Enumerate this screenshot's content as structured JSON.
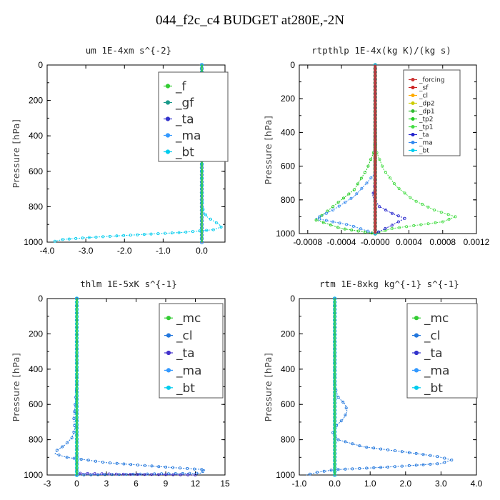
{
  "figure_title": "044_f2c_c4  BUDGET at280E,-2N",
  "chart_data": [
    {
      "type": "line",
      "title": "um   1E-4xm s^{-2}",
      "ylabel": "Pressure [hPa]",
      "xlim": [
        -4.0,
        0.6
      ],
      "ylim": [
        1000,
        0
      ],
      "xticks": [
        -4.0,
        -3.0,
        -2.0,
        -1.0,
        0.0
      ],
      "xtick_labels": [
        "-4.0",
        "-3.0",
        "-2.0",
        "-1.0",
        "0.0"
      ],
      "yticks": [
        0,
        200,
        400,
        600,
        800,
        1000
      ],
      "ytick_labels": [
        "0",
        "200",
        "400",
        "600",
        "800",
        "1000"
      ],
      "legend_placement": "top-right",
      "series": [
        {
          "name": "_f",
          "color": "#33cc33",
          "x": [
            0,
            0
          ],
          "y": [
            0,
            1000
          ]
        },
        {
          "name": "_gf",
          "color": "#1a9a8a",
          "x": [
            0,
            0
          ],
          "y": [
            0,
            1000
          ]
        },
        {
          "name": "_ta",
          "color": "#3333cc",
          "x": [
            0,
            0
          ],
          "y": [
            0,
            1000
          ]
        },
        {
          "name": "_ma",
          "color": "#3399ff",
          "x": [
            0,
            0
          ],
          "y": [
            0,
            1000
          ]
        },
        {
          "name": "_bt",
          "color": "#00ccee",
          "x": [
            0,
            0,
            0,
            0,
            0,
            0,
            0.02,
            0.05,
            0.15,
            0.3,
            0.45,
            0.5,
            0.3,
            -0.5,
            -1.4,
            -2.2,
            -3.0,
            -3.6,
            -3.8
          ],
          "y": [
            0,
            200,
            400,
            600,
            700,
            750,
            800,
            830,
            860,
            880,
            900,
            915,
            930,
            945,
            955,
            965,
            975,
            985,
            995
          ]
        }
      ]
    },
    {
      "type": "line",
      "title": "rtpthlp   1E-4x(kg K)/(kg s)",
      "ylabel": "Pressure [hPa]",
      "xlim": [
        -0.0009,
        0.0012
      ],
      "ylim": [
        1000,
        0
      ],
      "xticks": [
        -0.0008,
        -0.0004,
        0.0,
        0.0004,
        0.0008,
        0.0012
      ],
      "xtick_labels": [
        "-0.0008",
        "-0.0004",
        "-0.0000",
        "0.0004",
        "0.0008",
        "0.0012"
      ],
      "yticks": [
        0,
        200,
        400,
        600,
        800,
        1000
      ],
      "ytick_labels": [
        "0",
        "200",
        "400",
        "600",
        "800",
        "1000"
      ],
      "legend_placement": "top-right",
      "series": [
        {
          "name": "_forcing",
          "color": "#cc3333",
          "x": [
            0,
            0
          ],
          "y": [
            0,
            1000
          ]
        },
        {
          "name": "_sf",
          "color": "#cc2222",
          "x": [
            0,
            0
          ],
          "y": [
            0,
            1000
          ]
        },
        {
          "name": "_cl",
          "color": "#ffaa00",
          "x": [
            0,
            0
          ],
          "y": [
            0,
            1000
          ]
        },
        {
          "name": "_dp2",
          "color": "#cccc00",
          "x": [
            0,
            0
          ],
          "y": [
            0,
            1000
          ]
        },
        {
          "name": "_dp1",
          "color": "#33bb33",
          "x": [
            0,
            0,
            0,
            0,
            0
          ],
          "y": [
            0,
            400,
            500,
            700,
            1000
          ]
        },
        {
          "name": "_tp2",
          "color": "#22cc22",
          "x": [
            0,
            0,
            -2e-05,
            -0.0001,
            -0.00025,
            -0.0005,
            -0.0007,
            -0.0004,
            0
          ],
          "y": [
            0,
            450,
            520,
            620,
            740,
            840,
            920,
            970,
            1000
          ]
        },
        {
          "name": "_tp1",
          "color": "#44dd44",
          "x": [
            0,
            0,
            2e-05,
            0.0001,
            0.00025,
            0.00045,
            0.0007,
            0.00095,
            0.0008,
            0.0002,
            0
          ],
          "y": [
            0,
            450,
            520,
            620,
            720,
            800,
            860,
            900,
            930,
            970,
            1000
          ]
        },
        {
          "name": "_ta",
          "color": "#2222cc",
          "x": [
            0,
            0,
            -3e-05,
            5e-05,
            0.0002,
            0.00035,
            0.0002,
            0
          ],
          "y": [
            0,
            700,
            780,
            840,
            880,
            910,
            950,
            1000
          ]
        },
        {
          "name": "_ma",
          "color": "#3388ee",
          "x": [
            0,
            0,
            -0.0001,
            -0.00025,
            -0.0005,
            -0.0007,
            -0.0003,
            0
          ],
          "y": [
            0,
            640,
            700,
            780,
            860,
            910,
            950,
            1000
          ]
        },
        {
          "name": "_bt",
          "color": "#00ccee",
          "x": [
            0,
            0
          ],
          "y": [
            0,
            1000
          ]
        }
      ]
    },
    {
      "type": "line",
      "title": "thlm   1E-5xK s^{-1}",
      "ylabel": "Pressure [hPa]",
      "xlim": [
        -3,
        15
      ],
      "ylim": [
        1000,
        0
      ],
      "xticks": [
        -3,
        0,
        3,
        6,
        9,
        12,
        15
      ],
      "xtick_labels": [
        "-3",
        "0",
        "3",
        "6",
        "9",
        "12",
        "15"
      ],
      "yticks": [
        0,
        200,
        400,
        600,
        800,
        1000
      ],
      "ytick_labels": [
        "0",
        "200",
        "400",
        "600",
        "800",
        "1000"
      ],
      "legend_placement": "top-right",
      "series": [
        {
          "name": "_mc",
          "color": "#33cc33",
          "x": [
            0,
            0
          ],
          "y": [
            0,
            1000
          ]
        },
        {
          "name": "_cl",
          "color": "#2277dd",
          "x": [
            0,
            0,
            -0.1,
            -0.2,
            -0.3,
            -0.2,
            -0.5,
            -1.2,
            -2.0,
            -2.2,
            -1.0,
            3.0,
            9.0,
            13.0,
            12.5,
            0
          ],
          "y": [
            0,
            500,
            560,
            620,
            680,
            740,
            790,
            830,
            860,
            880,
            900,
            930,
            955,
            970,
            990,
            1000
          ]
        },
        {
          "name": "_ta",
          "color": "#4433cc",
          "x": [
            0,
            0,
            4,
            9,
            12
          ],
          "y": [
            0,
            990,
            995,
            998,
            1000
          ]
        },
        {
          "name": "_ma",
          "color": "#3399ff",
          "x": [
            0,
            0
          ],
          "y": [
            0,
            1000
          ]
        },
        {
          "name": "_bt",
          "color": "#00ccee",
          "x": [
            0,
            0
          ],
          "y": [
            0,
            1000
          ]
        }
      ]
    },
    {
      "type": "line",
      "title": "rtm   1E-8xkg kg^{-1} s^{-1}",
      "ylabel": "Pressure [hPa]",
      "xlim": [
        -1.0,
        4.0
      ],
      "ylim": [
        1000,
        0
      ],
      "xticks": [
        -1.0,
        0.0,
        1.0,
        2.0,
        3.0,
        4.0
      ],
      "xtick_labels": [
        "-1.0",
        "0.0",
        "1.0",
        "2.0",
        "3.0",
        "4.0"
      ],
      "yticks": [
        0,
        200,
        400,
        600,
        800,
        1000
      ],
      "ytick_labels": [
        "0",
        "200",
        "400",
        "600",
        "800",
        "1000"
      ],
      "legend_placement": "top-right",
      "series": [
        {
          "name": "_mc",
          "color": "#33cc33",
          "x": [
            0,
            0
          ],
          "y": [
            0,
            1000
          ]
        },
        {
          "name": "_cl",
          "color": "#2277dd",
          "x": [
            0,
            0,
            0.1,
            0.3,
            0.35,
            0.25,
            0.05,
            -0.05,
            0.1,
            0.8,
            2.0,
            2.9,
            3.3,
            3.0,
            1.5,
            0.0,
            -0.5,
            -0.8
          ],
          "y": [
            0,
            500,
            560,
            600,
            640,
            680,
            720,
            760,
            800,
            840,
            870,
            895,
            915,
            935,
            955,
            970,
            985,
            1000
          ]
        },
        {
          "name": "_ta",
          "color": "#3333cc",
          "x": [
            0,
            0
          ],
          "y": [
            0,
            1000
          ]
        },
        {
          "name": "_ma",
          "color": "#3399ff",
          "x": [
            0,
            0
          ],
          "y": [
            0,
            1000
          ]
        },
        {
          "name": "_bt",
          "color": "#00ccee",
          "x": [
            0,
            0
          ],
          "y": [
            0,
            1000
          ]
        }
      ]
    }
  ]
}
